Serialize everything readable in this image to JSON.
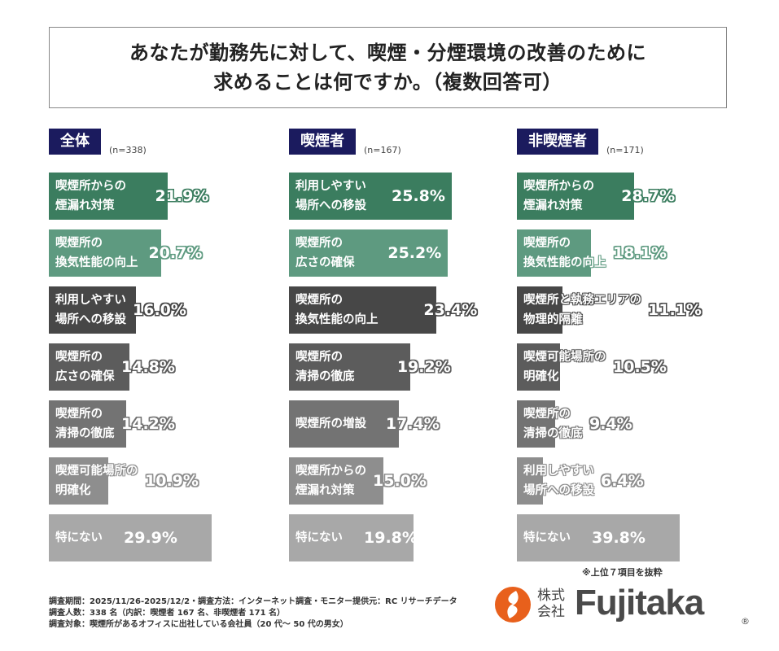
{
  "title": {
    "line1": "あなたが勤務先に対して、喫煙・分煙環境の改善のために",
    "line2": "求めることは何ですか。（複数回答可）"
  },
  "chart_data": [
    {
      "type": "bar",
      "orientation": "horizontal",
      "title": "全体",
      "n": "(n=338)",
      "categories": [
        "喫煙所からの\n煙漏れ対策",
        "喫煙所の\n換気性能の向上",
        "利用しやすい\n場所への移設",
        "喫煙所の\n広さの確保",
        "喫煙所の\n清掃の徹底",
        "喫煙可能場所の\n明確化",
        "特にない"
      ],
      "values": [
        21.9,
        20.7,
        16.0,
        14.8,
        14.2,
        10.9,
        29.9
      ],
      "labels": [
        "21.9%",
        "20.7%",
        "16.0%",
        "14.8%",
        "14.2%",
        "10.9%",
        "29.9%"
      ],
      "unit": "%"
    },
    {
      "type": "bar",
      "orientation": "horizontal",
      "title": "喫煙者",
      "n": "(n=167)",
      "categories": [
        "利用しやすい\n場所への移設",
        "喫煙所の\n広さの確保",
        "喫煙所の\n換気性能の向上",
        "喫煙所の\n清掃の徹底",
        "喫煙所の増設",
        "喫煙所からの\n煙漏れ対策",
        "特にない"
      ],
      "values": [
        25.8,
        25.2,
        23.4,
        19.2,
        17.4,
        15.0,
        19.8
      ],
      "labels": [
        "25.8%",
        "25.2%",
        "23.4%",
        "19.2%",
        "17.4%",
        "15.0%",
        "19.8%"
      ],
      "unit": "%"
    },
    {
      "type": "bar",
      "orientation": "horizontal",
      "title": "非喫煙者",
      "n": "(n=171)",
      "categories": [
        "喫煙所からの\n煙漏れ対策",
        "喫煙所の\n換気性能の向上",
        "喫煙所と執務エリアの\n物理的隔離",
        "喫煙可能場所の\n明確化",
        "喫煙所の\n清掃の徹底",
        "利用しやすい\n場所への移設",
        "特にない"
      ],
      "values": [
        28.7,
        18.1,
        11.1,
        10.5,
        9.4,
        6.4,
        39.8
      ],
      "labels": [
        "28.7%",
        "18.1%",
        "11.1%",
        "10.5%",
        "9.4%",
        "6.4%",
        "39.8%"
      ],
      "unit": "%"
    }
  ],
  "rank_colors": [
    "#3b7d5f",
    "#5e9a80",
    "#474747",
    "#5c5c5c",
    "#737373",
    "#8e8e8e",
    "#a8a8a8"
  ],
  "header_color": "#1b1b5e",
  "note": "※上位７項目を抜粋",
  "footer": {
    "line1": "調査期間：2025/11/26-2025/12/2・調査方法：インターネット調査・モニター提供元：RC リサーチデータ",
    "line2": "調査人数：338 名（内訳：喫煙者 167 名、非喫煙者 171 名）",
    "line3": "調査対象：喫煙所があるオフィスに出社している会社員（20 代～ 50 代の男女）"
  },
  "logo": {
    "kanji": "株式会社",
    "word": "Fujitaka",
    "mark": "®",
    "color": "#e8601c"
  }
}
